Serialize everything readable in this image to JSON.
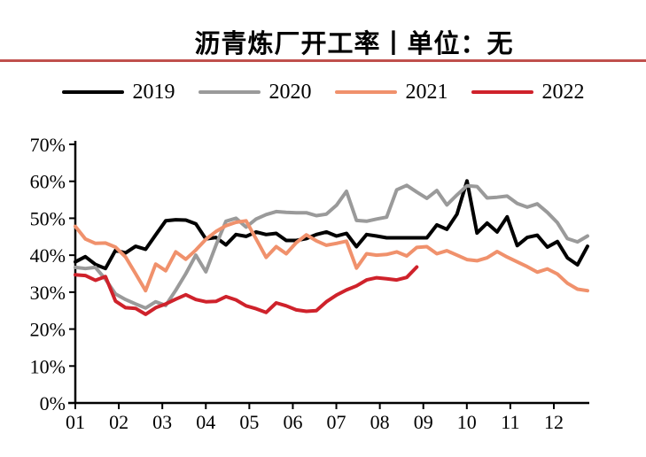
{
  "title": "沥青炼厂开工率丨单位：无",
  "accent_rule_color": "#C0504D",
  "legend": {
    "items": [
      {
        "label": "2019",
        "color": "#000000"
      },
      {
        "label": "2020",
        "color": "#9A9A9A"
      },
      {
        "label": "2021",
        "color": "#F0916C"
      },
      {
        "label": "2022",
        "color": "#CF222B"
      }
    ]
  },
  "chart_data": {
    "type": "line",
    "title": "沥青炼厂开工率丨单位：无",
    "unit_note": "单位：无",
    "grid": "off",
    "legend_position": "top",
    "points_per_year": 52,
    "x_axis": {
      "tick_labels": [
        "01",
        "02",
        "03",
        "04",
        "05",
        "06",
        "07",
        "08",
        "09",
        "10",
        "11",
        "12"
      ]
    },
    "y_axis": {
      "min": 0,
      "max": 70,
      "tick_labels": [
        "0%",
        "10%",
        "20%",
        "30%",
        "40%",
        "50%",
        "60%",
        "70%"
      ]
    },
    "series": [
      {
        "name": "2019",
        "color": "#000000",
        "values": [
          38.2,
          39.6,
          37.5,
          36.4,
          41.3,
          40.6,
          42.4,
          41.6,
          45.5,
          49.3,
          49.6,
          49.5,
          48.5,
          44.4,
          44.8,
          42.8,
          45.6,
          45.1,
          46.3,
          45.6,
          45.9,
          44.0,
          44.0,
          44.5,
          45.6,
          46.3,
          45.2,
          45.9,
          42.3,
          45.6,
          45.2,
          44.7,
          44.7,
          44.7,
          44.7,
          44.7,
          48.2,
          47.0,
          51.1,
          60.1,
          46.0,
          48.7,
          46.3,
          50.4,
          42.6,
          44.8,
          45.4,
          42.2,
          43.7,
          39.3,
          37.4,
          42.4
        ]
      },
      {
        "name": "2020",
        "color": "#9A9A9A",
        "values": [
          36.7,
          36.4,
          36.7,
          33.5,
          29.5,
          28.0,
          26.8,
          25.7,
          27.4,
          26.4,
          30.5,
          35.0,
          40.0,
          35.5,
          42.7,
          49.2,
          50.0,
          47.6,
          49.8,
          51.0,
          51.8,
          51.6,
          51.5,
          51.5,
          50.7,
          51.1,
          53.5,
          57.3,
          49.4,
          49.2,
          49.8,
          50.3,
          57.7,
          58.9,
          57.1,
          55.4,
          57.5,
          53.6,
          56.3,
          58.8,
          58.6,
          55.5,
          55.7,
          56.0,
          54.0,
          53.0,
          53.9,
          51.6,
          48.8,
          44.5,
          43.6,
          45.2
        ]
      },
      {
        "name": "2021",
        "color": "#F0916C",
        "values": [
          47.8,
          44.4,
          43.2,
          43.3,
          42.2,
          39.5,
          35.0,
          30.4,
          37.6,
          35.8,
          40.9,
          38.9,
          41.4,
          44.3,
          46.4,
          48.0,
          48.9,
          49.3,
          44.4,
          39.4,
          42.3,
          40.4,
          43.4,
          45.5,
          43.9,
          42.7,
          43.2,
          43.8,
          36.5,
          40.4,
          40.0,
          40.2,
          40.9,
          39.8,
          42.1,
          42.3,
          40.4,
          41.2,
          40.0,
          38.8,
          38.5,
          39.3,
          41.0,
          39.5,
          38.2,
          36.9,
          35.4,
          36.3,
          34.9,
          32.4,
          30.8,
          30.4
        ]
      },
      {
        "name": "2022",
        "color": "#CF222B",
        "values": [
          34.7,
          34.5,
          33.2,
          34.2,
          27.6,
          25.8,
          25.6,
          24.0,
          25.8,
          26.8,
          28.1,
          29.3,
          28.0,
          27.4,
          27.5,
          28.8,
          27.9,
          26.3,
          25.5,
          24.5,
          27.1,
          26.3,
          25.2,
          24.8,
          25.0,
          27.4,
          29.2,
          30.6,
          31.7,
          33.3,
          33.9,
          33.6,
          33.3,
          34.0,
          36.8
        ]
      }
    ]
  }
}
